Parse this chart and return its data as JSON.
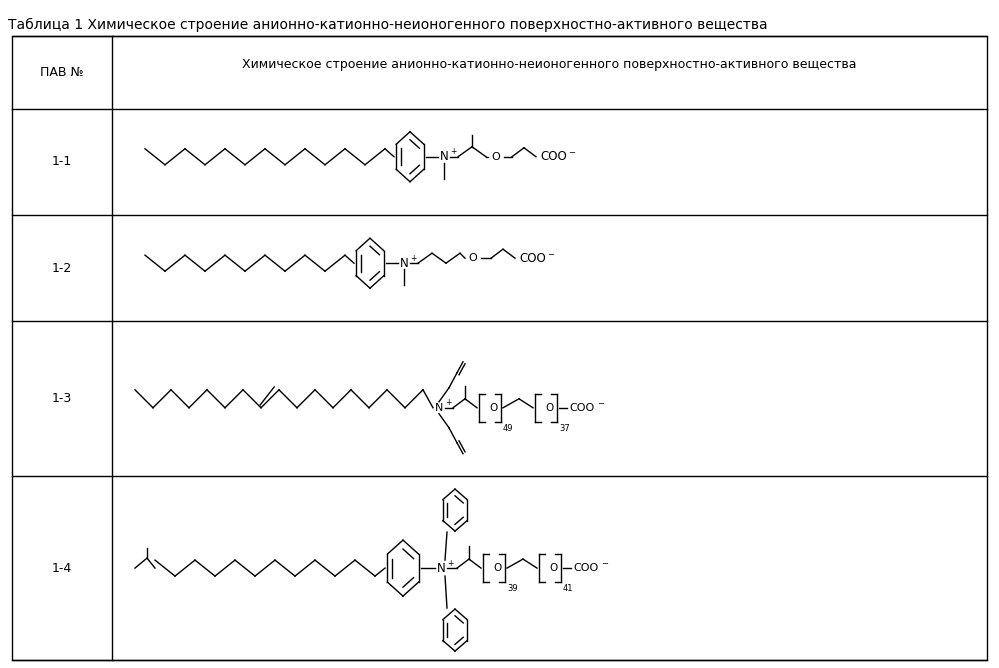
{
  "title": "Таблица 1 Химическое строение анионно-катионно-неионогенного поверхностно-активного вещества",
  "col1_header": "ПАВ №",
  "col2_header": "Химическое строение анионно-катионно-неионогенного поверхностно-активного вещества",
  "rows": [
    "1-1",
    "1-2",
    "1-3",
    "1-4"
  ],
  "bg_color": "#ffffff",
  "line_color": "#000000",
  "text_color": "#000000",
  "fig_width": 9.99,
  "fig_height": 6.68,
  "title_fontsize": 10,
  "header_fontsize": 9,
  "label_fontsize": 9,
  "struct_lw": 1.0
}
